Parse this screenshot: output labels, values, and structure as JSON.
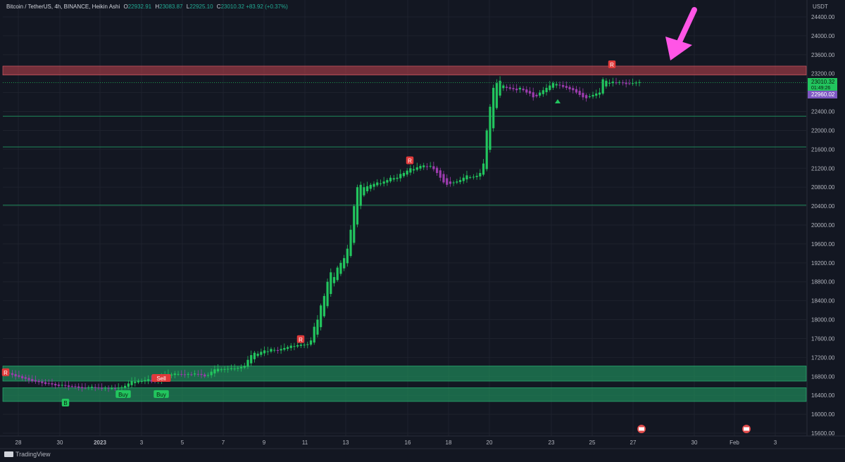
{
  "header": {
    "symbol": "Bitcoin / TetherUS, 4h, BINANCE, Heikin Ashi",
    "o_label": "O",
    "o": "22932.91",
    "h_label": "H",
    "h": "23083.87",
    "l_label": "L",
    "l": "22925.10",
    "c_label": "C",
    "c": "23010.32",
    "change": "+83.92 (+0.37%)"
  },
  "axis_unit": "USDT",
  "branding": "TradingView",
  "colors": {
    "up": "#22c55e",
    "down": "#9c3cae",
    "bg": "#131722",
    "resistance": "#c2434f",
    "support": "#1f8a5a",
    "arrow": "#ff55e6"
  },
  "chart_data": {
    "type": "candlestick",
    "ylim": [
      15400,
      24800
    ],
    "y_ticks": [
      "15600.00",
      "16000.00",
      "16400.00",
      "16800.00",
      "17200.00",
      "17600.00",
      "18000.00",
      "18400.00",
      "18800.00",
      "19200.00",
      "19600.00",
      "20000.00",
      "20400.00",
      "20800.00",
      "21200.00",
      "21600.00",
      "22000.00",
      "22400.00",
      "22800.00",
      "23200.00",
      "23600.00",
      "24000.00",
      "24400.00"
    ],
    "x_ticks": [
      "28",
      "30",
      "2023",
      "3",
      "5",
      "7",
      "9",
      "11",
      "13",
      "16",
      "18",
      "20",
      "23",
      "25",
      "27",
      "30",
      "Feb",
      "3"
    ],
    "price_labels": {
      "last": "23010.32",
      "countdown": "01:49:26",
      "other": "22960.02"
    },
    "zones": [
      {
        "type": "resistance",
        "from": 23170,
        "to": 23360
      },
      {
        "type": "support",
        "from": 16700,
        "to": 17020
      },
      {
        "type": "support",
        "from": 16270,
        "to": 16560
      }
    ],
    "levels": [
      22300,
      21650,
      20420
    ],
    "dotted_level": 23010,
    "signals": [
      {
        "text": "Buy",
        "x": "Jan 2",
        "price": 16420,
        "kind": "buy"
      },
      {
        "text": "Buy",
        "x": "Jan 4",
        "price": 16420,
        "kind": "buy"
      },
      {
        "text": "Sell",
        "x": "Jan 4",
        "price": 16760,
        "kind": "sell"
      },
      {
        "text": "R",
        "x": "Jan 11",
        "price": 17580,
        "kind": "sell"
      },
      {
        "text": "R",
        "x": "Jan 16",
        "price": 21360,
        "kind": "sell"
      },
      {
        "text": "R",
        "x": "Jan 26",
        "price": 23390,
        "kind": "sell"
      },
      {
        "text": "R",
        "x": "Dec 27",
        "price": 16880,
        "kind": "sell"
      },
      {
        "text": "B",
        "x": "Dec 30",
        "price": 16240,
        "kind": "buy"
      }
    ],
    "series": [
      {
        "date": "Dec 27",
        "values": [
          16880,
          16860,
          16830,
          16800,
          16790,
          16760,
          16750,
          16720,
          16700,
          16690,
          16680,
          16660
        ]
      },
      {
        "date": "Dec 29",
        "values": [
          16640,
          16650,
          16630,
          16610,
          16600,
          16620,
          16600,
          16580,
          16590,
          16580,
          16560,
          16550
        ]
      },
      {
        "date": "Dec 31",
        "values": [
          16560,
          16570,
          16580,
          16560,
          16550,
          16540,
          16560,
          16545,
          16550,
          16540,
          16560,
          16570
        ]
      },
      {
        "date": "Jan 2",
        "values": [
          16600,
          16650,
          16700,
          16690,
          16710,
          16700,
          16720,
          16740,
          16690,
          16700,
          16720,
          16800
        ]
      },
      {
        "date": "Jan 4",
        "values": [
          16830,
          16850,
          16840,
          16860,
          16850,
          16840,
          16830,
          16850,
          16840,
          16860,
          16850,
          16830
        ]
      },
      {
        "date": "Jan 6",
        "values": [
          16800,
          16830,
          16900,
          16950,
          16960,
          16950,
          16955,
          16960,
          16970,
          16965,
          16980,
          17000
        ]
      },
      {
        "date": "Jan 8",
        "values": [
          17020,
          17150,
          17250,
          17300,
          17280,
          17320,
          17350,
          17330,
          17380,
          17360,
          17340,
          17380
        ]
      },
      {
        "date": "Jan 10",
        "values": [
          17400,
          17420,
          17450,
          17440,
          17460,
          17470,
          17470,
          17480,
          17560,
          17850,
          18000,
          18300
        ]
      },
      {
        "date": "Jan 12",
        "values": [
          18500,
          18800,
          19000,
          18900,
          19100,
          19200,
          19300,
          19500,
          19900,
          20400,
          20800,
          20850
        ]
      },
      {
        "date": "Jan 14",
        "values": [
          20800,
          20820,
          20850,
          20870,
          20900,
          20880,
          20920,
          20950,
          21000,
          20990,
          21000,
          21080
        ]
      },
      {
        "date": "Jan 16",
        "values": [
          21100,
          21150,
          21200,
          21180,
          21220,
          21250,
          21260,
          21230,
          21250,
          21180,
          21100,
          21000
        ]
      },
      {
        "date": "Jan 18",
        "values": [
          20900,
          20850,
          20870,
          20900,
          20920,
          20950,
          21000,
          21050,
          21010,
          21020,
          21040,
          21100
        ]
      },
      {
        "date": "Jan 20",
        "values": [
          21300,
          22000,
          22500,
          22900,
          23000,
          23050,
          22950,
          22900,
          22880,
          22870,
          22850,
          22900
        ]
      },
      {
        "date": "Jan 22",
        "values": [
          22850,
          22800,
          22780,
          22700,
          22720,
          22800,
          22850,
          22900,
          22950,
          23000,
          22980,
          22950
        ]
      },
      {
        "date": "Jan 24",
        "values": [
          22920,
          22900,
          22870,
          22850,
          22800,
          22750,
          22700,
          22680,
          22720,
          22750,
          22780,
          22800
        ]
      },
      {
        "date": "Jan 26",
        "values": [
          23080,
          23050,
          23010,
          23030,
          23000,
          23020,
          23010,
          22980,
          22990,
          23000,
          23010,
          23020
        ]
      }
    ]
  }
}
